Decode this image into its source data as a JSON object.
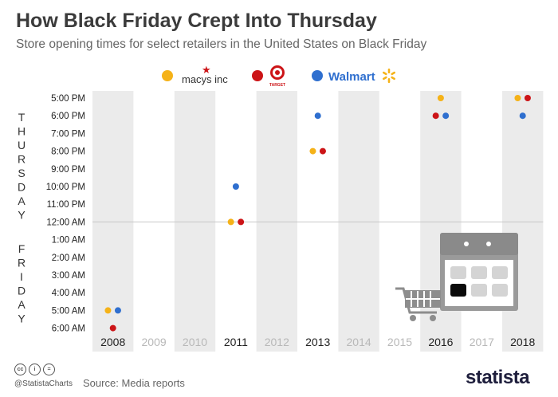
{
  "title": "How Black Friday Crept Into Thursday",
  "subtitle": "Store opening times for select retailers in the United States on Black Friday",
  "legend": [
    {
      "name": "macys inc",
      "color": "#f5b218"
    },
    {
      "name": "TARGET",
      "color": "#cc1417"
    },
    {
      "name": "Walmart",
      "color": "#2f6fcf"
    }
  ],
  "day_labels": {
    "thursday": "THURSDAY",
    "friday": "FRIDAY"
  },
  "footer": {
    "handle": "@StatistaCharts",
    "source_label": "Source:",
    "source_text": "Media reports",
    "brand": "statista"
  },
  "colors": {
    "macys": "#f5b218",
    "target": "#cc1417",
    "walmart": "#2f6fcf",
    "band": "#ebebeb",
    "midnight": "#c8c8c8"
  },
  "chart_data": {
    "type": "scatter",
    "title": "How Black Friday Crept Into Thursday",
    "xlabel": "",
    "ylabel": "",
    "categories": [
      "2008",
      "2009",
      "2010",
      "2011",
      "2012",
      "2013",
      "2014",
      "2015",
      "2016",
      "2017",
      "2018"
    ],
    "highlighted_years": [
      "2008",
      "2011",
      "2013",
      "2016",
      "2018"
    ],
    "y_tick_labels": [
      "5:00 PM",
      "6:00 PM",
      "7:00 PM",
      "8:00 PM",
      "9:00 PM",
      "10:00 PM",
      "11:00 PM",
      "12:00 AM",
      "1:00 AM",
      "2:00 AM",
      "3:00 AM",
      "4:00 AM",
      "5:00 AM",
      "6:00 AM"
    ],
    "series": [
      {
        "name": "macys inc",
        "points": [
          {
            "year": "2008",
            "time": "5:00 AM"
          },
          {
            "year": "2011",
            "time": "12:00 AM"
          },
          {
            "year": "2013",
            "time": "8:00 PM"
          },
          {
            "year": "2016",
            "time": "5:00 PM"
          },
          {
            "year": "2018",
            "time": "5:00 PM"
          }
        ]
      },
      {
        "name": "TARGET",
        "points": [
          {
            "year": "2008",
            "time": "6:00 AM"
          },
          {
            "year": "2011",
            "time": "12:00 AM"
          },
          {
            "year": "2013",
            "time": "8:00 PM"
          },
          {
            "year": "2016",
            "time": "6:00 PM"
          },
          {
            "year": "2018",
            "time": "5:00 PM"
          }
        ]
      },
      {
        "name": "Walmart",
        "points": [
          {
            "year": "2008",
            "time": "5:00 AM"
          },
          {
            "year": "2011",
            "time": "10:00 PM"
          },
          {
            "year": "2013",
            "time": "6:00 PM"
          },
          {
            "year": "2016",
            "time": "6:00 PM"
          },
          {
            "year": "2018",
            "time": "6:00 PM"
          }
        ]
      }
    ]
  }
}
